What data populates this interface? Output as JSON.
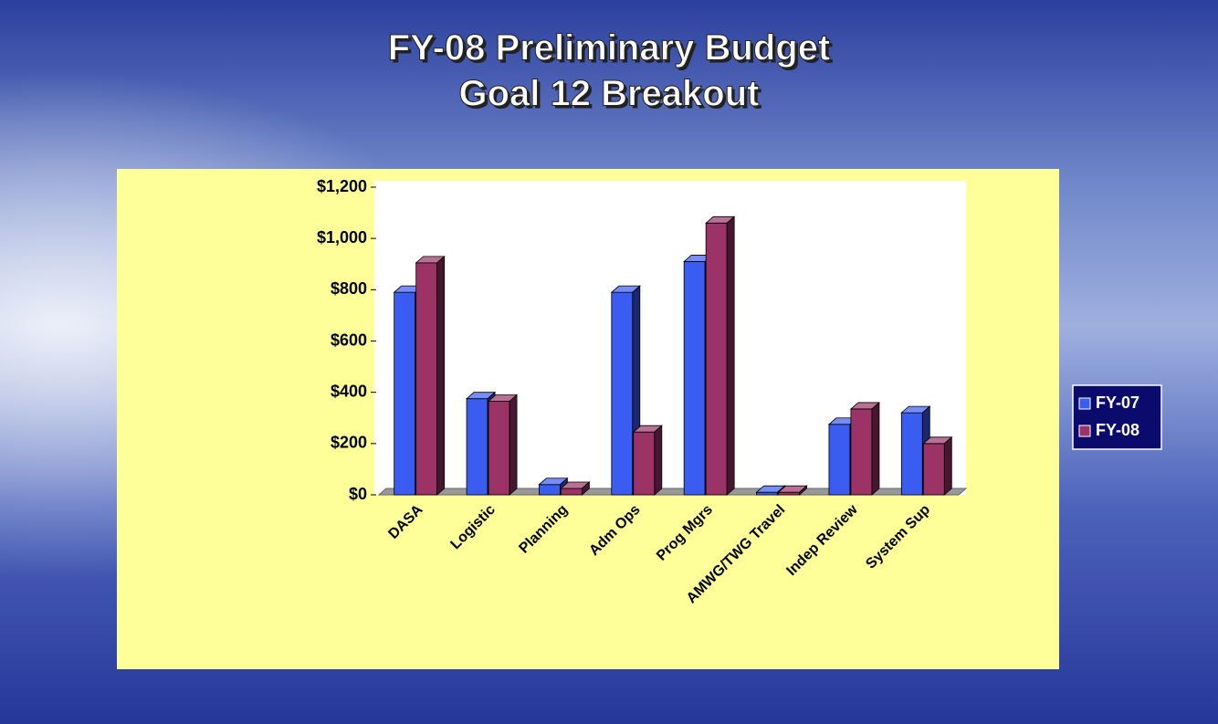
{
  "chart_data": {
    "type": "bar3d",
    "title": "FY-08 Preliminary Budget",
    "subtitle": "Goal 12 Breakout",
    "categories": [
      "DASA",
      "Logistic",
      "Planning",
      "Adm Ops",
      "Prog Mgrs",
      "AMWG/TWG Travel",
      "Indep Review",
      "System Sup"
    ],
    "series": [
      {
        "name": "FY-07",
        "color": "#3a5cf0",
        "values": [
          790,
          375,
          40,
          790,
          910,
          10,
          275,
          320
        ]
      },
      {
        "name": "FY-08",
        "color": "#9b3366",
        "values": [
          905,
          365,
          25,
          245,
          1060,
          10,
          335,
          200
        ]
      }
    ],
    "ylim": [
      0,
      1200
    ],
    "yticks": [
      {
        "value": 0,
        "label": "$0"
      },
      {
        "value": 200,
        "label": "$200"
      },
      {
        "value": 400,
        "label": "$400"
      },
      {
        "value": 600,
        "label": "$600"
      },
      {
        "value": 800,
        "label": "$800"
      },
      {
        "value": 1000,
        "label": "$1,000"
      },
      {
        "value": 1200,
        "label": "$1,200"
      }
    ],
    "legend": "right"
  }
}
